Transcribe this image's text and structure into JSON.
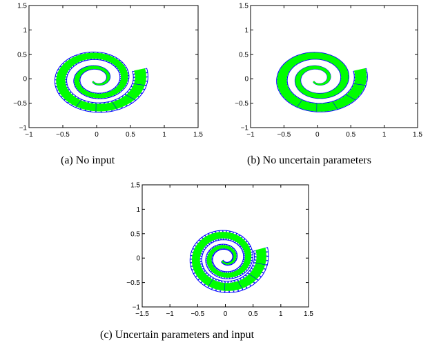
{
  "colors": {
    "over_approximation": "#0000ff",
    "reachable_set": "#00ff00",
    "axes": "#000000"
  },
  "chart_data": [
    {
      "type": "line",
      "caption": "(a) No input",
      "xlim": [
        -1,
        1.5
      ],
      "ylim": [
        -1,
        1.5
      ],
      "xticks": [
        "−1",
        "−0.5",
        "0",
        "0.5",
        "1",
        "1.5"
      ],
      "yticks": [
        "−1",
        "−0.5",
        "0",
        "0.5",
        "1",
        "1.5"
      ],
      "series": [
        {
          "color": "#0000ff",
          "kind": "set-outline",
          "spiral": {
            "a": 0.08,
            "b": 0.24,
            "theta_end": 15.2
          },
          "width_start": 0.02,
          "width_end": 0.22
        },
        {
          "color": "#00ff00",
          "kind": "set-fill",
          "spiral": {
            "a": 0.08,
            "b": 0.24,
            "theta_end": 15.2
          },
          "width_start": 0.015,
          "width_end": 0.16
        }
      ]
    },
    {
      "type": "line",
      "caption": "(b) No uncertain parameters",
      "xlim": [
        -1,
        1.5
      ],
      "ylim": [
        -1,
        1.5
      ],
      "xticks": [
        "−1",
        "−0.5",
        "0",
        "0.5",
        "1",
        "1.5"
      ],
      "yticks": [
        "−1",
        "−0.5",
        "0",
        "0.5",
        "1",
        "1.5"
      ],
      "series": [
        {
          "color": "#0000ff",
          "kind": "set-outline",
          "spiral": {
            "a": 0.08,
            "b": 0.24,
            "theta_end": 15.2
          },
          "width_start": 0.02,
          "width_end": 0.2
        },
        {
          "color": "#00ff00",
          "kind": "set-fill",
          "spiral": {
            "a": 0.08,
            "b": 0.24,
            "theta_end": 15.2
          },
          "width_start": 0.016,
          "width_end": 0.17
        }
      ]
    },
    {
      "type": "line",
      "caption": "(c) Uncertain parameters and input",
      "xlim": [
        -1.5,
        1.5
      ],
      "ylim": [
        -1,
        1.5
      ],
      "xticks": [
        "−1.5",
        "−1",
        "−0.5",
        "0",
        "0.5",
        "1",
        "1.5"
      ],
      "yticks": [
        "−1",
        "−0.5",
        "0",
        "0.5",
        "1",
        "1.5"
      ],
      "series": [
        {
          "color": "#0000ff",
          "kind": "set-outline",
          "spiral": {
            "a": 0.08,
            "b": 0.24,
            "theta_end": 15.2
          },
          "width_start": 0.05,
          "width_end": 0.26
        },
        {
          "color": "#00ff00",
          "kind": "set-fill",
          "spiral": {
            "a": 0.08,
            "b": 0.24,
            "theta_end": 15.2
          },
          "width_start": 0.02,
          "width_end": 0.17
        }
      ]
    }
  ]
}
